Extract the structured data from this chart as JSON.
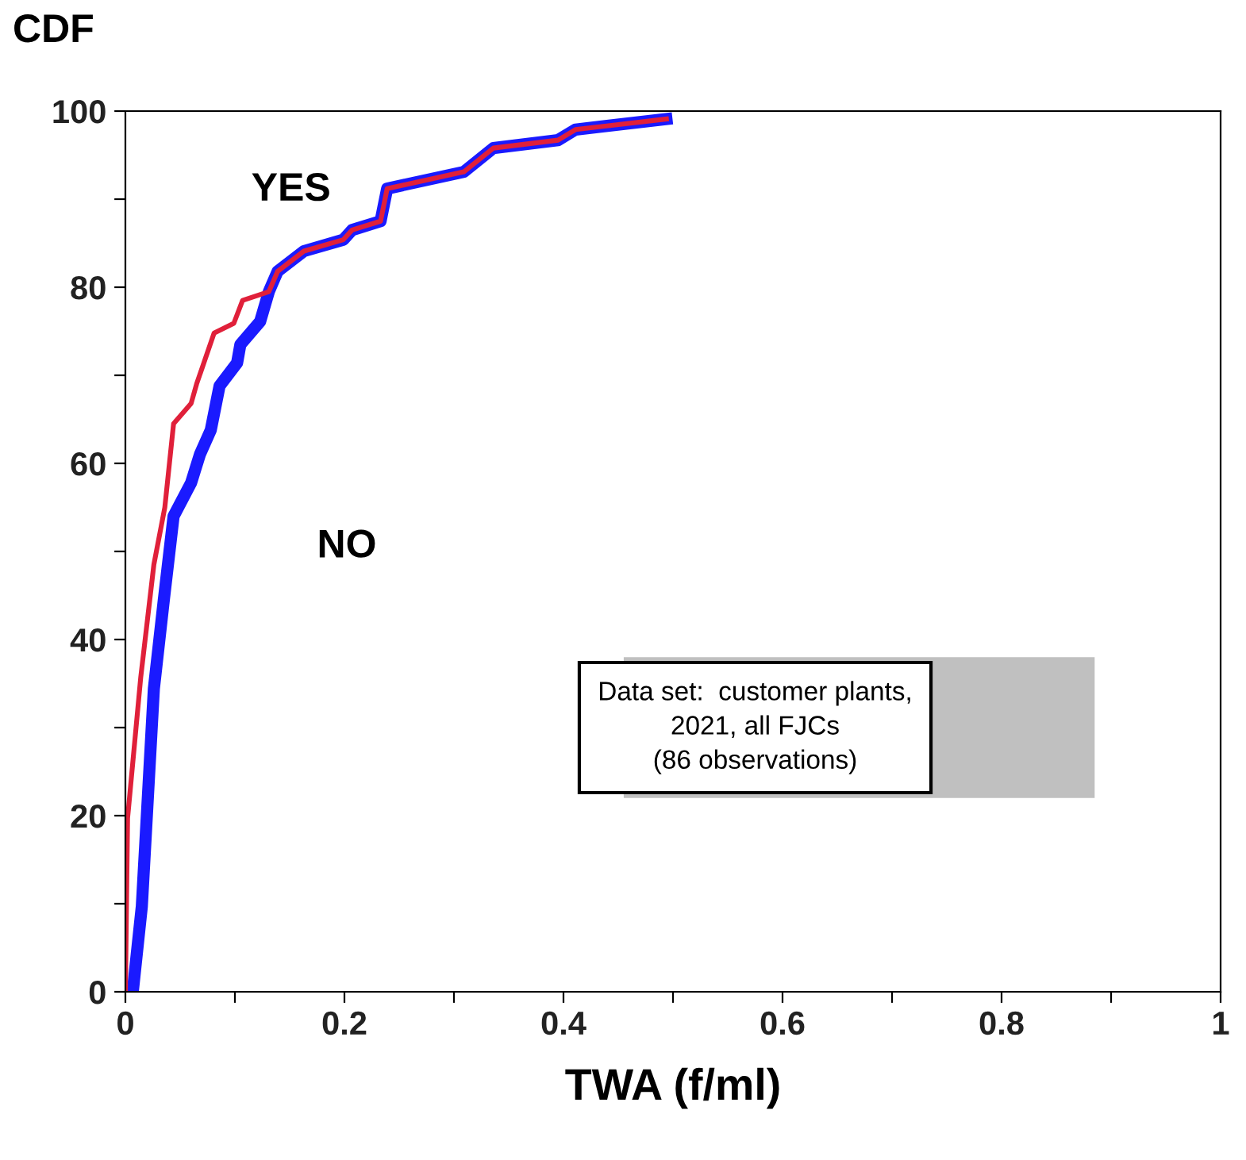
{
  "chart_data": {
    "type": "line",
    "ylabel": "CDF",
    "xlabel": "TWA (f/ml)",
    "xlim": [
      0,
      1
    ],
    "ylim": [
      0,
      100
    ],
    "xticks": [
      0,
      {
        "value": 0.1,
        "label": null
      },
      0.2,
      {
        "value": 0.3,
        "label": null
      },
      0.4,
      {
        "value": 0.5,
        "label": null
      },
      0.6,
      {
        "value": 0.7,
        "label": null
      },
      0.8,
      {
        "value": 0.9,
        "label": null
      },
      1
    ],
    "yticks": [
      0,
      {
        "value": 10,
        "label": null
      },
      20,
      {
        "value": 30,
        "label": null
      },
      40,
      {
        "value": 50,
        "label": null
      },
      60,
      {
        "value": 70,
        "label": null
      },
      80,
      {
        "value": 90,
        "label": null
      },
      100
    ],
    "grid": false,
    "legend": false,
    "marker": "none",
    "line_style": "solid",
    "series": [
      {
        "color": "#1a1aff",
        "x": [
          0.007,
          0.015,
          0.026,
          0.035,
          0.044,
          0.06,
          0.068,
          0.078,
          0.086,
          0.102,
          0.105,
          0.123,
          0.131,
          0.139,
          0.163,
          0.199,
          0.207,
          0.233,
          0.239,
          0.309,
          0.336,
          0.395,
          0.411,
          0.494
        ],
        "values": [
          0.3,
          9.7,
          34.4,
          44.4,
          54,
          57.8,
          61,
          63.8,
          68.8,
          71.4,
          73.5,
          76.1,
          79.5,
          81.8,
          84.1,
          85.4,
          86.5,
          87.5,
          91.2,
          93.1,
          95.8,
          96.7,
          97.9,
          99.1
        ]
      },
      {
        "color": "#e0203a",
        "x": [
          0,
          0.002,
          0.014,
          0.026,
          0.036,
          0.044,
          0.06,
          0.065,
          0.081,
          0.099,
          0.107,
          0.131,
          0.139,
          0.163,
          0.199,
          0.207,
          0.233,
          0.239,
          0.309,
          0.336,
          0.395,
          0.411,
          0.494
        ],
        "values": [
          0,
          19.7,
          35.7,
          48.5,
          55,
          64.5,
          66.8,
          69,
          74.8,
          75.9,
          78.5,
          79.5,
          81.8,
          84.1,
          85.4,
          86.5,
          87.5,
          91.2,
          93.1,
          95.8,
          96.7,
          97.9,
          99.1
        ]
      }
    ],
    "annotations": [
      "YES",
      "NO",
      "Data set:  customer plants,\n2021, all FJCs\n(86 observations)"
    ]
  }
}
